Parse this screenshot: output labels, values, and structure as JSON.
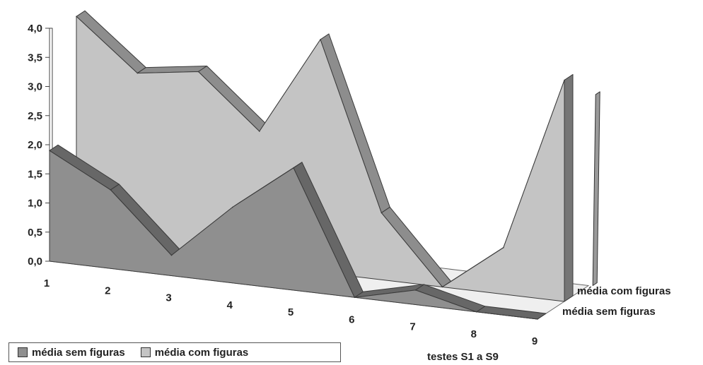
{
  "chart_data": {
    "type": "area",
    "title": "",
    "xlabel": "testes S1 a S9",
    "ylabel": "",
    "ylim": [
      0,
      4
    ],
    "y_ticks": [
      "0,0",
      "0,5",
      "1,0",
      "1,5",
      "2,0",
      "2,5",
      "3,0",
      "3,5",
      "4,0"
    ],
    "categories": [
      "1",
      "2",
      "3",
      "4",
      "5",
      "6",
      "7",
      "8",
      "9"
    ],
    "series": [
      {
        "name": "média sem figuras",
        "values": [
          1.9,
          1.35,
          0.35,
          1.3,
          2.1,
          0.0,
          0.25,
          0.0,
          0.0
        ],
        "color": "#8f8f8f"
      },
      {
        "name": "média com figuras",
        "values": [
          3.9,
          3.05,
          3.2,
          2.3,
          4.0,
          1.15,
          0.0,
          0.8,
          3.8
        ],
        "color": "#c4c4c4"
      }
    ],
    "depth_labels": [
      "média com figuras",
      "média sem figuras"
    ],
    "legend": "bottom-left",
    "grid": false
  },
  "legend_items": [
    {
      "label": "média sem figuras",
      "color": "#8f8f8f"
    },
    {
      "label": "média com figuras",
      "color": "#c4c4c4"
    }
  ]
}
